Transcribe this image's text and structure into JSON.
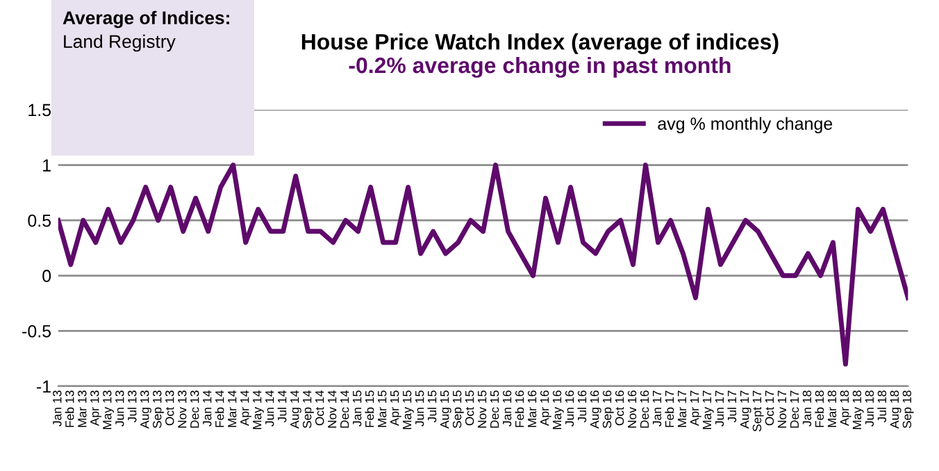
{
  "chart_data": {
    "type": "line",
    "title": "House Price Watch Index (average of indices)",
    "subtitle": "-0.2% average change in past month",
    "annotations": [
      "Average of Indices:",
      "Land Registry"
    ],
    "categories": [
      "Jan 13",
      "Feb 13",
      "Mar 13",
      "Apr 13",
      "May 13",
      "Jun 13",
      "Jul 13",
      "Aug 13",
      "Sep 13",
      "Oct 13",
      "Nov 13",
      "Dec 13",
      "Jan 14",
      "Feb 14",
      "Mar 14",
      "Apr 14",
      "May 14",
      "Jun 14",
      "Jul 14",
      "Aug 14",
      "Sep 14",
      "Oct 14",
      "Nov 14",
      "Dec 14",
      "Jan 15",
      "Feb 15",
      "Mar 15",
      "Apr 15",
      "May 15",
      "Jun 15",
      "Jul 15",
      "Aug 15",
      "Sep 15",
      "Oct 15",
      "Nov 15",
      "Dec 15",
      "Jan 16",
      "Feb 16",
      "Mar 16",
      "Apr 16",
      "May 16",
      "Jun 16",
      "Jul 16",
      "Aug 16",
      "Sep 16",
      "Oct 16",
      "Nov 16",
      "Dec 16",
      "Jan 17",
      "Feb 17",
      "Mar 17",
      "Apr 17",
      "May 17",
      "Jun 17",
      "Jul 17",
      "Aug 17",
      "Sept 17",
      "Oct 17",
      "Nov 17",
      "Dec 17",
      "Jan 18",
      "Feb 18",
      "Mar 18",
      "Apr 18",
      "May 18",
      "Jun 18",
      "Jul 18",
      "Aug 18",
      "Sep 18"
    ],
    "series": [
      {
        "name": "avg % monthly change",
        "color": "#5e0a6b",
        "values": [
          0.5,
          0.1,
          0.5,
          0.3,
          0.6,
          0.3,
          0.5,
          0.8,
          0.5,
          0.8,
          0.4,
          0.7,
          0.4,
          0.8,
          1.0,
          0.3,
          0.6,
          0.4,
          0.4,
          0.9,
          0.4,
          0.4,
          0.3,
          0.5,
          0.4,
          0.8,
          0.3,
          0.3,
          0.8,
          0.2,
          0.4,
          0.2,
          0.3,
          0.5,
          0.4,
          1.0,
          0.4,
          0.2,
          0,
          0.7,
          0.3,
          0.8,
          0.3,
          0.2,
          0.4,
          0.5,
          0.1,
          1.0,
          0.3,
          0.5,
          0.2,
          -0.2,
          0.6,
          0.1,
          0.3,
          0.5,
          0.4,
          0.2,
          0,
          0,
          0.2,
          0,
          0.3,
          -0.8,
          0.6,
          0.4,
          0.6,
          0.2,
          -0.2
        ]
      }
    ],
    "ylim": [
      -1,
      1.5
    ],
    "yticks": [
      -1,
      -0.5,
      0,
      0.5,
      1,
      1.5
    ],
    "grid": "y",
    "legend": "top right",
    "marker": "none",
    "line_style": "solid"
  }
}
